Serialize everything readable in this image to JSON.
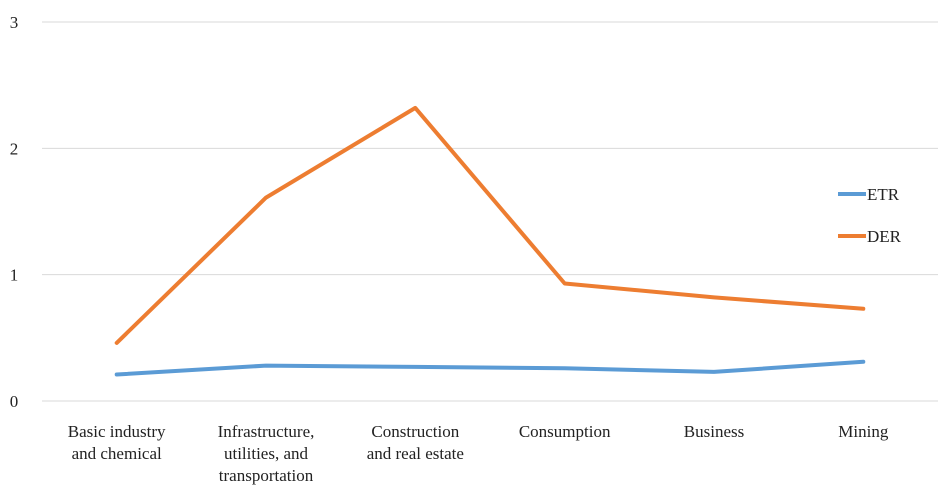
{
  "chart_data": {
    "type": "line",
    "title": "",
    "xlabel": "",
    "ylabel": "",
    "categories": [
      "Basic industry and chemical",
      "Infrastructure, utilities, and transportation",
      "Construction and real estate",
      "Consumption",
      "Business",
      "Mining"
    ],
    "category_label_lines": [
      [
        "Basic industry",
        "and chemical"
      ],
      [
        "Infrastructure,",
        "utilities, and",
        "transportation"
      ],
      [
        "Construction",
        "and real estate"
      ],
      [
        "Consumption"
      ],
      [
        "Business"
      ],
      [
        "Mining"
      ]
    ],
    "series": [
      {
        "name": "ETR",
        "color": "#5b9bd5",
        "values": [
          0.21,
          0.28,
          0.27,
          0.26,
          0.23,
          0.31
        ]
      },
      {
        "name": "DER",
        "color": "#ed7d31",
        "values": [
          0.46,
          1.61,
          2.32,
          0.93,
          0.82,
          0.73
        ]
      }
    ],
    "ylim": [
      0,
      3
    ],
    "yticks": [
      "0",
      "1",
      "2",
      "3"
    ],
    "grid": true,
    "legend": "right"
  }
}
